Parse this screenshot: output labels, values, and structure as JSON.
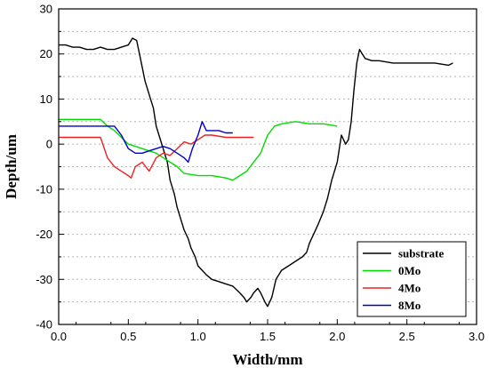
{
  "chart_data": {
    "type": "line",
    "title": "",
    "xlabel": "Width/mm",
    "ylabel": "Depth/um",
    "xlim": [
      0.0,
      3.0
    ],
    "ylim": [
      -40,
      30
    ],
    "x_ticks": [
      "0.0",
      "0.5",
      "1.0",
      "1.5",
      "2.0",
      "2.5",
      "3.0"
    ],
    "y_ticks": [
      "30",
      "20",
      "10",
      "0",
      "-10",
      "-20",
      "-30",
      "-40"
    ],
    "grid": true,
    "legend_position": "bottom-right",
    "series": [
      {
        "name": "substrate",
        "color": "#000000",
        "x": [
          0.0,
          0.05,
          0.1,
          0.15,
          0.2,
          0.25,
          0.3,
          0.35,
          0.4,
          0.45,
          0.5,
          0.53,
          0.56,
          0.58,
          0.6,
          0.62,
          0.65,
          0.68,
          0.7,
          0.72,
          0.75,
          0.78,
          0.8,
          0.83,
          0.85,
          0.88,
          0.9,
          0.93,
          0.95,
          0.98,
          1.0,
          1.03,
          1.06,
          1.1,
          1.15,
          1.2,
          1.25,
          1.3,
          1.33,
          1.35,
          1.38,
          1.4,
          1.43,
          1.45,
          1.48,
          1.5,
          1.53,
          1.56,
          1.6,
          1.65,
          1.7,
          1.75,
          1.78,
          1.8,
          1.83,
          1.86,
          1.9,
          1.93,
          1.96,
          2.0,
          2.03,
          2.06,
          2.08,
          2.1,
          2.12,
          2.14,
          2.16,
          2.18,
          2.2,
          2.25,
          2.3,
          2.4,
          2.5,
          2.6,
          2.7,
          2.8,
          2.83
        ],
        "y": [
          22,
          22,
          21.5,
          21.5,
          21,
          21,
          21.5,
          21,
          21,
          21.5,
          22,
          23.5,
          23,
          20,
          17,
          14,
          11,
          8,
          4,
          2,
          -1,
          -4,
          -8,
          -11,
          -14,
          -17,
          -19,
          -21,
          -23,
          -25,
          -27,
          -28,
          -29,
          -30,
          -30.5,
          -31,
          -31.5,
          -33,
          -34,
          -35,
          -34,
          -33,
          -32,
          -33,
          -35,
          -36,
          -34,
          -30,
          -28,
          -27,
          -26,
          -25,
          -24,
          -22,
          -20,
          -18,
          -15,
          -12,
          -8,
          -4,
          2,
          0,
          1,
          5,
          12,
          18,
          21,
          20,
          19,
          18.5,
          18.5,
          18,
          18,
          18,
          18,
          17.5,
          18
        ]
      },
      {
        "name": "0Mo",
        "color": "#00dd00",
        "x": [
          0.0,
          0.1,
          0.2,
          0.3,
          0.35,
          0.4,
          0.45,
          0.5,
          0.6,
          0.7,
          0.75,
          0.8,
          0.85,
          0.9,
          1.0,
          1.1,
          1.2,
          1.25,
          1.3,
          1.35,
          1.4,
          1.45,
          1.5,
          1.55,
          1.6,
          1.7,
          1.8,
          1.9,
          2.0
        ],
        "y": [
          5.5,
          5.5,
          5.5,
          5.5,
          4,
          3,
          1.5,
          0,
          -1,
          -2,
          -3,
          -4,
          -5,
          -6.5,
          -7,
          -7,
          -7.5,
          -8,
          -7,
          -6,
          -4,
          -2,
          2,
          4,
          4.5,
          5,
          4.5,
          4.5,
          4
        ]
      },
      {
        "name": "4Mo",
        "color": "#ee2222",
        "x": [
          0.0,
          0.1,
          0.2,
          0.3,
          0.35,
          0.4,
          0.45,
          0.5,
          0.52,
          0.55,
          0.6,
          0.65,
          0.7,
          0.75,
          0.8,
          0.85,
          0.9,
          0.95,
          1.0,
          1.05,
          1.1,
          1.2,
          1.3,
          1.4
        ],
        "y": [
          1.5,
          1.5,
          1.5,
          1.5,
          -3,
          -5,
          -6,
          -7,
          -7.5,
          -5,
          -4,
          -6,
          -3,
          -2,
          -2.5,
          -1,
          0.5,
          0,
          1,
          2,
          2,
          1.5,
          1.5,
          1.5
        ]
      },
      {
        "name": "8Mo",
        "color": "#0000cc",
        "x": [
          0.0,
          0.1,
          0.2,
          0.3,
          0.4,
          0.45,
          0.5,
          0.55,
          0.6,
          0.65,
          0.7,
          0.75,
          0.8,
          0.85,
          0.9,
          0.93,
          0.96,
          1.0,
          1.03,
          1.06,
          1.1,
          1.15,
          1.2,
          1.25
        ],
        "y": [
          4,
          4,
          4,
          4,
          4,
          2,
          -1,
          -2,
          -2,
          -1.5,
          -1,
          -0.5,
          -1,
          -2,
          -3,
          -4,
          -1,
          2,
          5,
          3,
          3,
          3,
          2.5,
          2.5
        ]
      }
    ]
  }
}
